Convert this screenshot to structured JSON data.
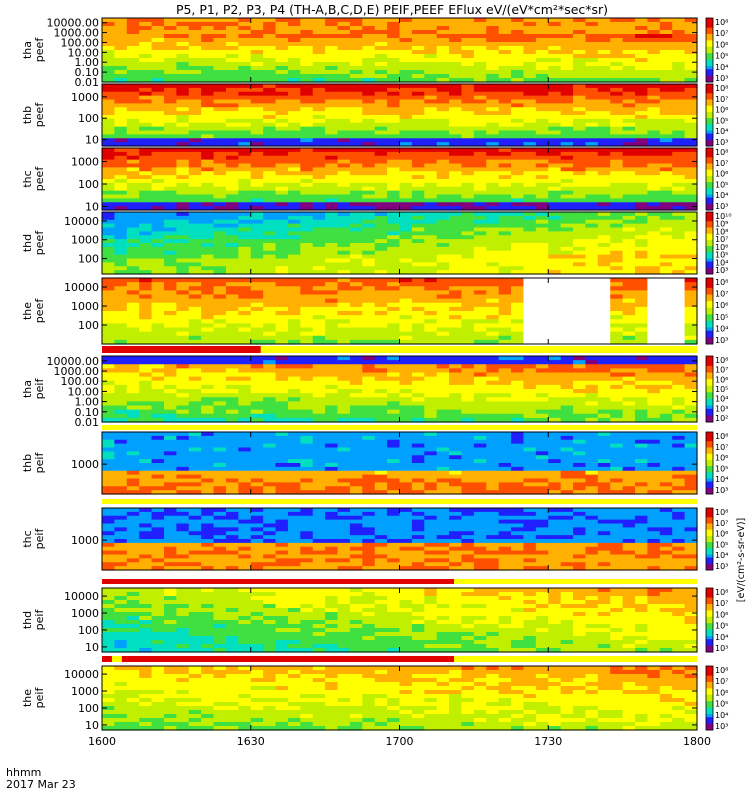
{
  "chart_data": {
    "type": "heatmap",
    "title": "P5, P1, P2, P3, P4 (TH-A,B,C,D,E) PEIF,PEEF EFlux eV/(eV*cm²*sec*sr)",
    "time_axis": {
      "label_line1": "hhmm",
      "label_line2": "2017 Mar 23",
      "start_min": 0,
      "end_min": 120,
      "ticks": [
        {
          "min": 0,
          "label": "1600"
        },
        {
          "min": 30,
          "label": "1630"
        },
        {
          "min": 60,
          "label": "1700"
        },
        {
          "min": 90,
          "label": "1730"
        },
        {
          "min": 120,
          "label": "1800"
        }
      ]
    },
    "colorbar_label": "[eV/(cm²-s-sr-eV)]",
    "panels": [
      {
        "label1": "tha",
        "label2": "peef",
        "ymin": 0.01,
        "ymax": 30000,
        "ticks": [
          {
            "v": 10000,
            "label": "10000.00"
          },
          {
            "v": 1000,
            "label": "1000.00"
          },
          {
            "v": 100,
            "label": "100.00"
          },
          {
            "v": 10,
            "label": "10.00"
          },
          {
            "v": 1,
            "label": "1.00"
          },
          {
            "v": 0.1,
            "label": "0.10"
          },
          {
            "v": 0.01,
            "label": "0.01"
          }
        ],
        "cbar_ticks": [
          "10⁸",
          "10⁷",
          "10⁶",
          "10⁵",
          "10⁴",
          "10³"
        ]
      },
      {
        "label1": "thb",
        "label2": "peef",
        "ymin": 5,
        "ymax": 4000,
        "ticks": [
          {
            "v": 1000,
            "label": "1000"
          },
          {
            "v": 100,
            "label": "100"
          },
          {
            "v": 10,
            "label": "10"
          }
        ],
        "cbar_ticks": [
          "10⁸",
          "10⁷",
          "10⁶",
          "10⁵",
          "10⁴",
          "10³"
        ]
      },
      {
        "label1": "thc",
        "label2": "peef",
        "ymin": 7,
        "ymax": 4000,
        "ticks": [
          {
            "v": 1000,
            "label": "1000"
          },
          {
            "v": 100,
            "label": "100"
          },
          {
            "v": 10,
            "label": "10"
          }
        ],
        "cbar_ticks": [
          "10⁸",
          "10⁷",
          "10⁶",
          "10⁵",
          "10⁴",
          "10³"
        ]
      },
      {
        "label1": "thd",
        "label2": "peef",
        "ymin": 15,
        "ymax": 30000,
        "ticks": [
          {
            "v": 10000,
            "label": "10000"
          },
          {
            "v": 1000,
            "label": "1000"
          },
          {
            "v": 100,
            "label": "100"
          }
        ],
        "cbar_ticks": [
          "10¹⁰",
          "10⁹",
          "10⁸",
          "10⁷",
          "10⁶",
          "10⁵",
          "10⁴",
          "10³"
        ]
      },
      {
        "label1": "the",
        "label2": "peef",
        "ymin": 10,
        "ymax": 30000,
        "ticks": [
          {
            "v": 10000,
            "label": "10000"
          },
          {
            "v": 1000,
            "label": "1000"
          },
          {
            "v": 100,
            "label": "100"
          }
        ],
        "cbar_ticks": [
          "10⁸",
          "10⁷",
          "10⁶",
          "10⁵",
          "10⁴",
          "10³"
        ]
      },
      {
        "label1": "tha",
        "label2": "peif",
        "ymin": 0.01,
        "ymax": 30000,
        "ticks": [
          {
            "v": 10000,
            "label": "10000.00"
          },
          {
            "v": 1000,
            "label": "1000.00"
          },
          {
            "v": 100,
            "label": "100.00"
          },
          {
            "v": 10,
            "label": "10.00"
          },
          {
            "v": 1,
            "label": "1.00"
          },
          {
            "v": 0.1,
            "label": "0.10"
          },
          {
            "v": 0.01,
            "label": "0.01"
          }
        ],
        "cbar_ticks": [
          "10⁸",
          "10⁷",
          "10⁶",
          "10⁵",
          "10⁴",
          "10³",
          "10²"
        ]
      },
      {
        "label1": "thb",
        "label2": "peif",
        "ymin": 50,
        "ymax": 25000,
        "ticks": [
          {
            "v": 1000,
            "label": "1000"
          }
        ],
        "cbar_ticks": [
          "10⁸",
          "10⁷",
          "10⁶",
          "10⁵",
          "10⁴",
          "10³"
        ]
      },
      {
        "label1": "thc",
        "label2": "peif",
        "ymin": 50,
        "ymax": 25000,
        "ticks": [
          {
            "v": 1000,
            "label": "1000"
          }
        ],
        "cbar_ticks": [
          "10⁸",
          "10⁷",
          "10⁶",
          "10⁵",
          "10⁴",
          "10³"
        ]
      },
      {
        "label1": "thd",
        "label2": "peif",
        "ymin": 5,
        "ymax": 30000,
        "ticks": [
          {
            "v": 10000,
            "label": "10000"
          },
          {
            "v": 1000,
            "label": "1000"
          },
          {
            "v": 100,
            "label": "100"
          },
          {
            "v": 10,
            "label": "10"
          }
        ],
        "cbar_ticks": [
          "10⁸",
          "10⁷",
          "10⁶",
          "10⁵",
          "10⁴",
          "10³"
        ]
      },
      {
        "label1": "the",
        "label2": "peif",
        "ymin": 5,
        "ymax": 30000,
        "ticks": [
          {
            "v": 10000,
            "label": "10000"
          },
          {
            "v": 1000,
            "label": "1000"
          },
          {
            "v": 100,
            "label": "100"
          },
          {
            "v": 10,
            "label": "10"
          }
        ],
        "cbar_ticks": [
          "10⁸",
          "10⁷",
          "10⁶",
          "10⁵",
          "10⁴",
          "10³"
        ]
      }
    ],
    "flag_bars": [
      {
        "after_panel": 4,
        "segments": [
          {
            "from_min": 0,
            "to_min": 32,
            "color": "#e00000"
          }
        ]
      },
      {
        "after_panel": 5,
        "segments": []
      },
      {
        "after_panel": 6,
        "segments": []
      },
      {
        "after_panel": 7,
        "segments": [
          {
            "from_min": 0,
            "to_min": 71,
            "color": "#e00000"
          }
        ]
      },
      {
        "after_panel": 8,
        "segments": [
          {
            "from_min": 0,
            "to_min": 2,
            "color": "#e00000"
          },
          {
            "from_min": 4,
            "to_min": 71,
            "color": "#e00000"
          }
        ]
      }
    ],
    "colormap": [
      "#800080",
      "#2020ff",
      "#00a0ff",
      "#00e0c0",
      "#40e040",
      "#c0f000",
      "#ffff00",
      "#ffb000",
      "#ff5000",
      "#e00000"
    ]
  }
}
